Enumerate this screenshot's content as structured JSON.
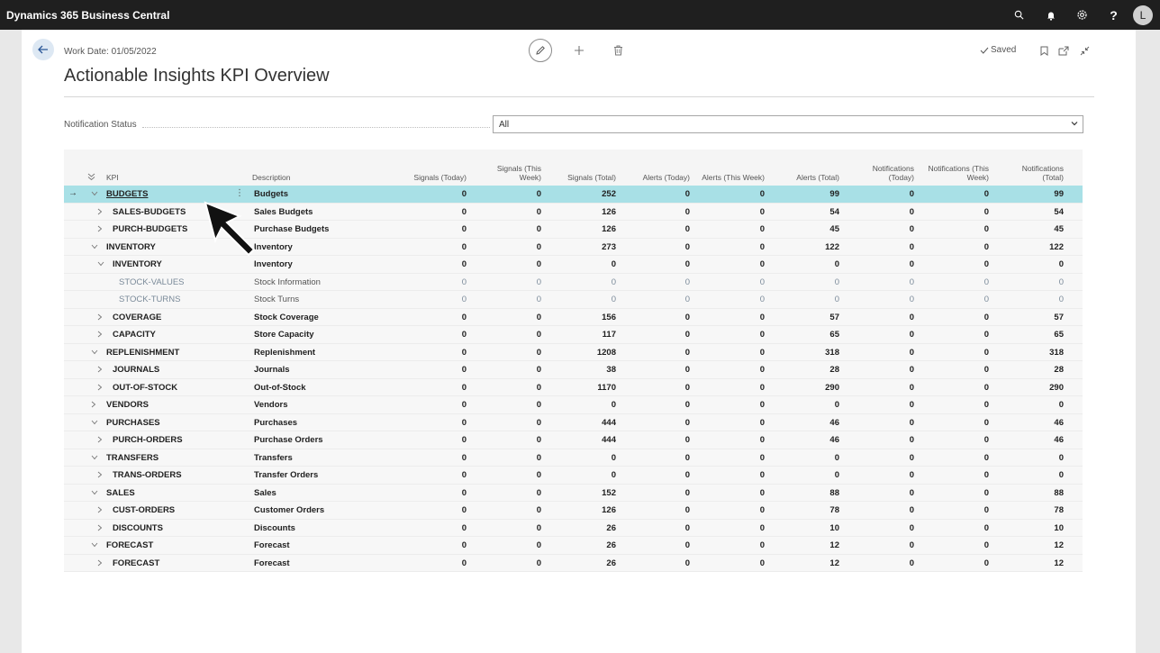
{
  "app": {
    "title": "Dynamics 365 Business Central",
    "user_initial": "L"
  },
  "header": {
    "work_date": "Work Date: 01/05/2022",
    "page_title": "Actionable Insights KPI Overview",
    "saved": "Saved"
  },
  "filter": {
    "label": "Notification Status",
    "value": "All"
  },
  "columns": {
    "kpi": "KPI",
    "description": "Description",
    "signals_today": "Signals (Today)",
    "signals_week": "Signals (This Week)",
    "signals_total": "Signals (Total)",
    "alerts_today": "Alerts (Today)",
    "alerts_week": "Alerts (This Week)",
    "alerts_total": "Alerts (Total)",
    "notif_today": "Notifications (Today)",
    "notif_week": "Notifications (This Week)",
    "notif_total": "Notifications (Total)"
  },
  "rows": [
    {
      "kpi": "BUDGETS",
      "desc": "Budgets",
      "v": [
        "0",
        "0",
        "252",
        "0",
        "0",
        "99",
        "0",
        "0",
        "99"
      ]
    },
    {
      "kpi": "SALES-BUDGETS",
      "desc": "Sales Budgets",
      "v": [
        "0",
        "0",
        "126",
        "0",
        "0",
        "54",
        "0",
        "0",
        "54"
      ]
    },
    {
      "kpi": "PURCH-BUDGETS",
      "desc": "Purchase Budgets",
      "v": [
        "0",
        "0",
        "126",
        "0",
        "0",
        "45",
        "0",
        "0",
        "45"
      ]
    },
    {
      "kpi": "INVENTORY",
      "desc": "Inventory",
      "v": [
        "0",
        "0",
        "273",
        "0",
        "0",
        "122",
        "0",
        "0",
        "122"
      ]
    },
    {
      "kpi": "INVENTORY",
      "desc": "Inventory",
      "v": [
        "0",
        "0",
        "0",
        "0",
        "0",
        "0",
        "0",
        "0",
        "0"
      ]
    },
    {
      "kpi": "STOCK-VALUES",
      "desc": "Stock Information",
      "v": [
        "0",
        "0",
        "0",
        "0",
        "0",
        "0",
        "0",
        "0",
        "0"
      ]
    },
    {
      "kpi": "STOCK-TURNS",
      "desc": "Stock Turns",
      "v": [
        "0",
        "0",
        "0",
        "0",
        "0",
        "0",
        "0",
        "0",
        "0"
      ]
    },
    {
      "kpi": "COVERAGE",
      "desc": "Stock Coverage",
      "v": [
        "0",
        "0",
        "156",
        "0",
        "0",
        "57",
        "0",
        "0",
        "57"
      ]
    },
    {
      "kpi": "CAPACITY",
      "desc": "Store Capacity",
      "v": [
        "0",
        "0",
        "117",
        "0",
        "0",
        "65",
        "0",
        "0",
        "65"
      ]
    },
    {
      "kpi": "REPLENISHMENT",
      "desc": "Replenishment",
      "v": [
        "0",
        "0",
        "1208",
        "0",
        "0",
        "318",
        "0",
        "0",
        "318"
      ]
    },
    {
      "kpi": "JOURNALS",
      "desc": "Journals",
      "v": [
        "0",
        "0",
        "38",
        "0",
        "0",
        "28",
        "0",
        "0",
        "28"
      ]
    },
    {
      "kpi": "OUT-OF-STOCK",
      "desc": "Out-of-Stock",
      "v": [
        "0",
        "0",
        "1170",
        "0",
        "0",
        "290",
        "0",
        "0",
        "290"
      ]
    },
    {
      "kpi": "VENDORS",
      "desc": "Vendors",
      "v": [
        "0",
        "0",
        "0",
        "0",
        "0",
        "0",
        "0",
        "0",
        "0"
      ]
    },
    {
      "kpi": "PURCHASES",
      "desc": "Purchases",
      "v": [
        "0",
        "0",
        "444",
        "0",
        "0",
        "46",
        "0",
        "0",
        "46"
      ]
    },
    {
      "kpi": "PURCH-ORDERS",
      "desc": "Purchase Orders",
      "v": [
        "0",
        "0",
        "444",
        "0",
        "0",
        "46",
        "0",
        "0",
        "46"
      ]
    },
    {
      "kpi": "TRANSFERS",
      "desc": "Transfers",
      "v": [
        "0",
        "0",
        "0",
        "0",
        "0",
        "0",
        "0",
        "0",
        "0"
      ]
    },
    {
      "kpi": "TRANS-ORDERS",
      "desc": "Transfer Orders",
      "v": [
        "0",
        "0",
        "0",
        "0",
        "0",
        "0",
        "0",
        "0",
        "0"
      ]
    },
    {
      "kpi": "SALES",
      "desc": "Sales",
      "v": [
        "0",
        "0",
        "152",
        "0",
        "0",
        "88",
        "0",
        "0",
        "88"
      ]
    },
    {
      "kpi": "CUST-ORDERS",
      "desc": "Customer Orders",
      "v": [
        "0",
        "0",
        "126",
        "0",
        "0",
        "78",
        "0",
        "0",
        "78"
      ]
    },
    {
      "kpi": "DISCOUNTS",
      "desc": "Discounts",
      "v": [
        "0",
        "0",
        "26",
        "0",
        "0",
        "10",
        "0",
        "0",
        "10"
      ]
    },
    {
      "kpi": "FORECAST",
      "desc": "Forecast",
      "v": [
        "0",
        "0",
        "26",
        "0",
        "0",
        "12",
        "0",
        "0",
        "12"
      ]
    },
    {
      "kpi": "FORECAST",
      "desc": "Forecast",
      "v": [
        "0",
        "0",
        "26",
        "0",
        "0",
        "12",
        "0",
        "0",
        "12"
      ]
    }
  ]
}
